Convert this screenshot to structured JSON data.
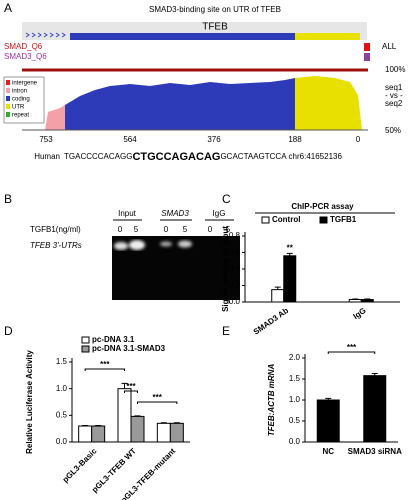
{
  "panel_labels": [
    "A",
    "B",
    "C",
    "D",
    "E"
  ],
  "panel_a": {
    "title": "SMAD3-binding site on UTR of TFEB",
    "gene": "TFEB",
    "tracks": [
      "SMAD_Q6",
      "SMAD3_Q6"
    ],
    "all": "ALL",
    "legend": [
      "intergene",
      "intron",
      "coding",
      "UTR",
      "repeat"
    ],
    "pct_top": "100%",
    "pct_bottom": "50%",
    "seq_labels": [
      "seq1",
      "- vs -",
      "seq2"
    ],
    "positions": [
      "753",
      "564",
      "376",
      "188",
      "0"
    ],
    "species": "Human",
    "seq_left": "TGACCCCACAGG",
    "seq_motif": "CTGCCAGACAG",
    "seq_right": "GCACTAAGTCCA",
    "coord": "chr6:41652136"
  },
  "panel_b": {
    "columns": [
      "Input",
      "SMAD3",
      "IgG"
    ],
    "treatment": "TGFB1(ng/ml)",
    "doses": [
      "0",
      "5",
      "0",
      "5",
      "0",
      "5"
    ],
    "row_label": "TFEB 3'-UTRs"
  },
  "chart_data": [
    {
      "type": "bar",
      "title": "ChIP-PCR assay",
      "y_label": "Signal relative to input",
      "categories": [
        "SMAD3 Ab",
        "IgG"
      ],
      "series": [
        {
          "name": "Control",
          "color": "#ffffff",
          "values": [
            0.15,
            0.03
          ],
          "errors": [
            0.03,
            0.006
          ]
        },
        {
          "name": "TGFB1",
          "color": "#000000",
          "values": [
            0.56,
            0.03
          ],
          "errors": [
            0.03,
            0.006
          ]
        }
      ],
      "ylim": [
        0,
        0.8
      ],
      "yticks": [
        {
          "value": 0,
          "label": "0.0"
        },
        0.2,
        0.4,
        0.6,
        0.8
      ],
      "annotations": [
        "**"
      ]
    },
    {
      "type": "bar",
      "y_label": "Relative Luciferase Activity",
      "categories": [
        "pGL3-Basic",
        "pGL3-TFEB WT",
        "pGL3-TFEB-mutant"
      ],
      "series": [
        {
          "name": "pc-DNA 3.1",
          "color": "#ffffff",
          "values": [
            0.3,
            1.0,
            0.35
          ],
          "errors": [
            0.01,
            0.1,
            0.01
          ]
        },
        {
          "name": "pc-DNA 3.1-SMAD3",
          "color": "#999999",
          "values": [
            0.3,
            0.48,
            0.35
          ],
          "errors": [
            0.01,
            0.01,
            0.01
          ]
        }
      ],
      "ylim": [
        0,
        1.5
      ],
      "yticks": [
        {
          "value": 0,
          "label": "0.0"
        },
        0.5,
        {
          "value": 1,
          "label": "1.0"
        },
        1.5
      ],
      "annotations": [
        "***",
        "***",
        "***"
      ]
    },
    {
      "type": "bar",
      "y_label": "TFEB:ACTB mRNA",
      "categories": [
        "NC",
        "SMAD3 siRNA"
      ],
      "series": [
        {
          "name": null,
          "color": "#000000",
          "values": [
            1.0,
            1.58
          ],
          "errors": [
            0.04,
            0.05
          ]
        }
      ],
      "ylim": [
        0,
        2
      ],
      "yticks": [
        {
          "value": 0,
          "label": "0.0"
        },
        0.5,
        {
          "value": 1,
          "label": "1.0"
        },
        1.5,
        {
          "value": 2,
          "label": "2.0"
        }
      ],
      "annotations": [
        "***"
      ]
    }
  ]
}
